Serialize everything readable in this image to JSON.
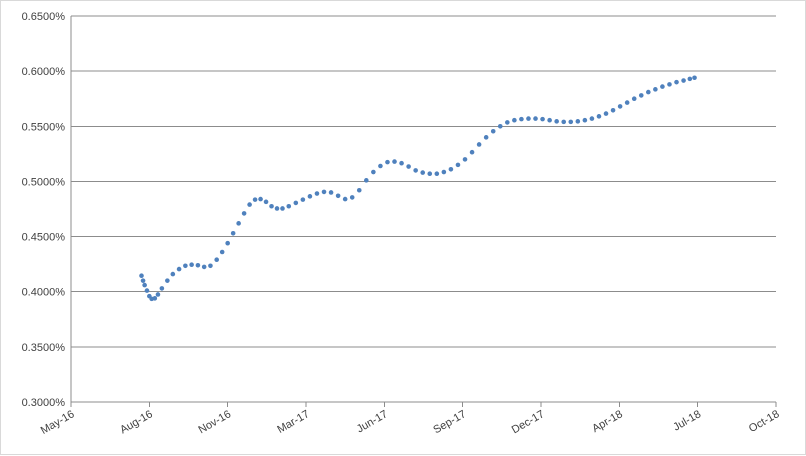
{
  "chart_data": {
    "type": "scatter",
    "title": "",
    "xlabel": "",
    "ylabel": "",
    "x_ticks": [
      "May-16",
      "Aug-16",
      "Nov-16",
      "Mar-17",
      "Jun-17",
      "Sep-17",
      "Dec-17",
      "Apr-18",
      "Jul-18",
      "Oct-18"
    ],
    "x_tick_dates": [
      "2016-05-01",
      "2016-08-09",
      "2016-11-17",
      "2017-02-25",
      "2017-06-05",
      "2017-09-13",
      "2017-12-22",
      "2018-04-01",
      "2018-07-10",
      "2018-10-18"
    ],
    "y_ticks": [
      "0.3000%",
      "0.3500%",
      "0.4000%",
      "0.4500%",
      "0.5000%",
      "0.5500%",
      "0.6000%",
      "0.6500%"
    ],
    "ylim": [
      0.3,
      0.65
    ],
    "xlim": [
      "2016-05-01",
      "2018-10-18"
    ],
    "grid": "horizontal",
    "legend": "none",
    "marker_color": "#4f81bd",
    "series": [
      {
        "points": [
          [
            "2016-07-30",
            0.4145
          ],
          [
            "2016-08-01",
            0.41
          ],
          [
            "2016-08-03",
            0.406
          ],
          [
            "2016-08-06",
            0.401
          ],
          [
            "2016-08-09",
            0.396
          ],
          [
            "2016-08-12",
            0.3935
          ],
          [
            "2016-08-16",
            0.394
          ],
          [
            "2016-08-20",
            0.3975
          ],
          [
            "2016-08-25",
            0.403
          ],
          [
            "2016-09-01",
            0.41
          ],
          [
            "2016-09-08",
            0.416
          ],
          [
            "2016-09-16",
            0.4205
          ],
          [
            "2016-09-24",
            0.4235
          ],
          [
            "2016-10-02",
            0.4245
          ],
          [
            "2016-10-10",
            0.424
          ],
          [
            "2016-10-18",
            0.4225
          ],
          [
            "2016-10-26",
            0.4235
          ],
          [
            "2016-11-03",
            0.429
          ],
          [
            "2016-11-10",
            0.436
          ],
          [
            "2016-11-17",
            0.444
          ],
          [
            "2016-11-24",
            0.453
          ],
          [
            "2016-12-01",
            0.462
          ],
          [
            "2016-12-08",
            0.471
          ],
          [
            "2016-12-15",
            0.479
          ],
          [
            "2016-12-22",
            0.4835
          ],
          [
            "2016-12-29",
            0.484
          ],
          [
            "2017-01-05",
            0.4815
          ],
          [
            "2017-01-12",
            0.4775
          ],
          [
            "2017-01-19",
            0.4755
          ],
          [
            "2017-01-26",
            0.4755
          ],
          [
            "2017-02-03",
            0.4775
          ],
          [
            "2017-02-12",
            0.4805
          ],
          [
            "2017-02-21",
            0.4835
          ],
          [
            "2017-03-02",
            0.4865
          ],
          [
            "2017-03-11",
            0.489
          ],
          [
            "2017-03-20",
            0.4905
          ],
          [
            "2017-03-29",
            0.49
          ],
          [
            "2017-04-07",
            0.487
          ],
          [
            "2017-04-16",
            0.484
          ],
          [
            "2017-04-25",
            0.4855
          ],
          [
            "2017-05-04",
            0.492
          ],
          [
            "2017-05-13",
            0.501
          ],
          [
            "2017-05-22",
            0.5085
          ],
          [
            "2017-05-31",
            0.514
          ],
          [
            "2017-06-09",
            0.5175
          ],
          [
            "2017-06-18",
            0.518
          ],
          [
            "2017-06-27",
            0.5165
          ],
          [
            "2017-07-06",
            0.5135
          ],
          [
            "2017-07-15",
            0.51
          ],
          [
            "2017-07-24",
            0.508
          ],
          [
            "2017-08-02",
            0.507
          ],
          [
            "2017-08-11",
            0.507
          ],
          [
            "2017-08-20",
            0.5085
          ],
          [
            "2017-08-29",
            0.511
          ],
          [
            "2017-09-07",
            0.515
          ],
          [
            "2017-09-16",
            0.52
          ],
          [
            "2017-09-25",
            0.5265
          ],
          [
            "2017-10-04",
            0.5335
          ],
          [
            "2017-10-13",
            0.54
          ],
          [
            "2017-10-22",
            0.5455
          ],
          [
            "2017-10-31",
            0.55
          ],
          [
            "2017-11-09",
            0.5535
          ],
          [
            "2017-11-18",
            0.5555
          ],
          [
            "2017-11-27",
            0.5565
          ],
          [
            "2017-12-06",
            0.557
          ],
          [
            "2017-12-15",
            0.557
          ],
          [
            "2017-12-24",
            0.5565
          ],
          [
            "2018-01-02",
            0.5555
          ],
          [
            "2018-01-11",
            0.5545
          ],
          [
            "2018-01-20",
            0.554
          ],
          [
            "2018-01-29",
            0.554
          ],
          [
            "2018-02-07",
            0.5545
          ],
          [
            "2018-02-16",
            0.5555
          ],
          [
            "2018-02-25",
            0.557
          ],
          [
            "2018-03-06",
            0.559
          ],
          [
            "2018-03-15",
            0.5615
          ],
          [
            "2018-03-24",
            0.5645
          ],
          [
            "2018-04-02",
            0.568
          ],
          [
            "2018-04-11",
            0.5715
          ],
          [
            "2018-04-20",
            0.575
          ],
          [
            "2018-04-29",
            0.578
          ],
          [
            "2018-05-08",
            0.581
          ],
          [
            "2018-05-17",
            0.5835
          ],
          [
            "2018-05-26",
            0.586
          ],
          [
            "2018-06-04",
            0.588
          ],
          [
            "2018-06-13",
            0.59
          ],
          [
            "2018-06-22",
            0.5915
          ],
          [
            "2018-06-30",
            0.593
          ],
          [
            "2018-07-06",
            0.594
          ]
        ]
      }
    ]
  }
}
